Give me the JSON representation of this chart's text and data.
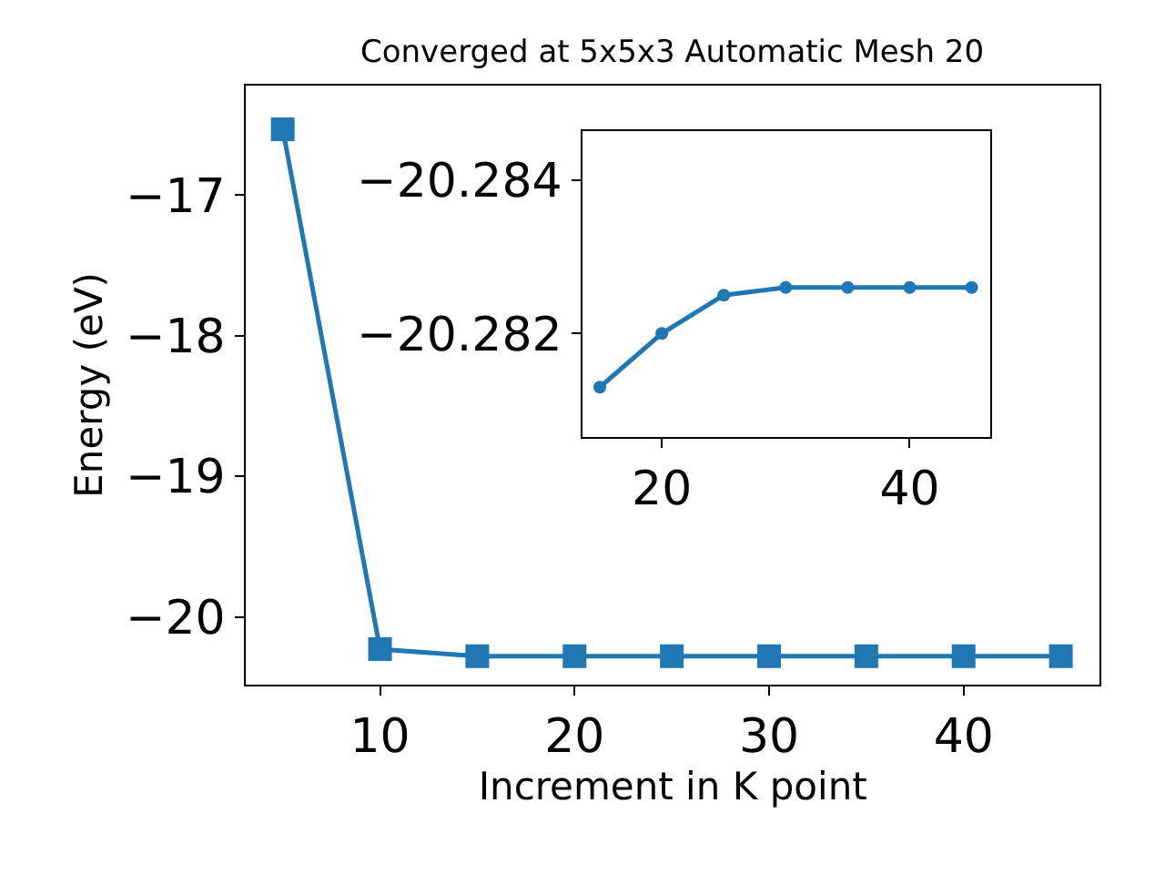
{
  "chart_data": [
    {
      "type": "line",
      "title": "Converged at 5x5x3 Automatic Mesh 20",
      "xlabel": "Increment in K point",
      "ylabel": "Energy (eV)",
      "x": [
        5,
        10,
        15,
        20,
        25,
        30,
        35,
        40,
        45
      ],
      "series": [
        {
          "color": "#1f77b4",
          "values": [
            -16.53,
            -20.23,
            -20.28,
            -20.28,
            -20.28,
            -20.28,
            -20.28,
            -20.28,
            -20.28
          ]
        }
      ],
      "xlim": [
        3.1,
        47.0
      ],
      "xticks": [
        10,
        20,
        30,
        40
      ],
      "ylim": [
        -20.48,
        -16.22
      ],
      "yticks": [
        {
          "value": -20,
          "label": "−20"
        },
        {
          "value": -19,
          "label": "−19"
        },
        {
          "value": -18,
          "label": "−18"
        },
        {
          "value": -17,
          "label": "−17"
        }
      ],
      "marker": "square",
      "line_style": "solid"
    },
    {
      "type": "line",
      "x": [
        15,
        20,
        25,
        30,
        35,
        40,
        45
      ],
      "series": [
        {
          "color": "#1f77b4",
          "values": [
            -20.2813,
            -20.282,
            -20.2825,
            -20.2826,
            -20.2826,
            -20.2826,
            -20.2826
          ]
        }
      ],
      "xlim": [
        13.6,
        46.5
      ],
      "xticks": [
        20,
        40
      ],
      "ylim": [
        -20.28065,
        -20.28464
      ],
      "yticks": [
        {
          "value": -20.284,
          "label": "−20.284"
        },
        {
          "value": -20.282,
          "label": "−20.282"
        }
      ],
      "marker": "circle",
      "line_style": "solid"
    }
  ]
}
